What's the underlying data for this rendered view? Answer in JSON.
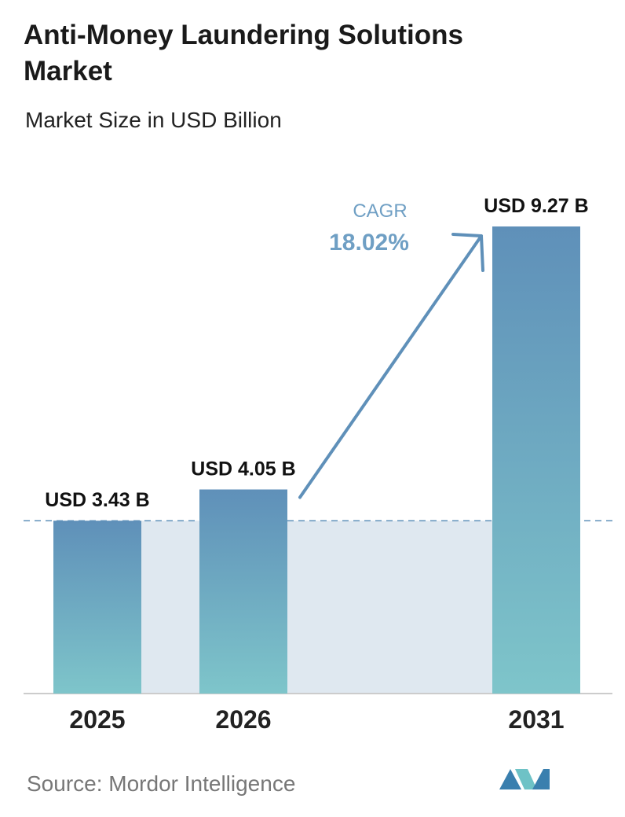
{
  "chart_data": {
    "type": "bar",
    "title": "Anti-Money Laundering Solutions Market",
    "subtitle": "Market Size in USD Billion",
    "categories": [
      "2025",
      "2026",
      "2031"
    ],
    "values": [
      3.43,
      4.05,
      9.27
    ],
    "value_labels": [
      "USD 3.43 B",
      "USD 4.05 B",
      "USD 9.27 B"
    ],
    "color": [
      "#5f90b9",
      "#7ec5ca"
    ],
    "annotation": {
      "label": "CAGR",
      "value": "18.02%"
    },
    "source": "Source: Mordor Intelligence"
  }
}
